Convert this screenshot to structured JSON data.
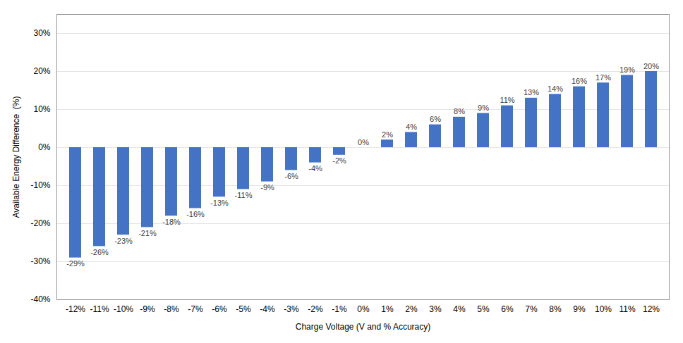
{
  "chart_data": {
    "type": "bar",
    "categories": [
      "-12%",
      "-11%",
      "-10%",
      "-9%",
      "-8%",
      "-7%",
      "-6%",
      "-5%",
      "-4%",
      "-3%",
      "-2%",
      "-1%",
      "0%",
      "1%",
      "2%",
      "3%",
      "4%",
      "5%",
      "6%",
      "7%",
      "8%",
      "9%",
      "10%",
      "11%",
      "12%"
    ],
    "values": [
      -29,
      -26,
      -23,
      -21,
      -18,
      -16,
      -13,
      -11,
      -9,
      -6,
      -4,
      -2,
      0,
      2,
      4,
      6,
      8,
      9,
      11,
      13,
      14,
      16,
      17,
      19,
      20
    ],
    "value_labels": [
      "-29%",
      "-26%",
      "-23%",
      "-21%",
      "-18%",
      "-16%",
      "-13%",
      "-11%",
      "-9%",
      "-6%",
      "-4%",
      "-2%",
      "0%",
      "2%",
      "4%",
      "6%",
      "8%",
      "9%",
      "11%",
      "13%",
      "14%",
      "16%",
      "17%",
      "19%",
      "20%"
    ],
    "data_labels": true,
    "color": "#4472c4",
    "xlabel": "Charge Voltage (V and % Accuracy)",
    "ylabel": "Available Energy Difference  (%)",
    "ylim": [
      -40,
      35
    ],
    "yticks": [
      {
        "value": -40,
        "label": "-40%"
      },
      {
        "value": -30,
        "label": "-30%"
      },
      {
        "value": -20,
        "label": "-20%"
      },
      {
        "value": -10,
        "label": "-10%"
      },
      {
        "value": 0,
        "label": "0%"
      },
      {
        "value": 10,
        "label": "10%"
      },
      {
        "value": 20,
        "label": "20%"
      },
      {
        "value": 30,
        "label": "30%"
      }
    ],
    "grid": true
  }
}
